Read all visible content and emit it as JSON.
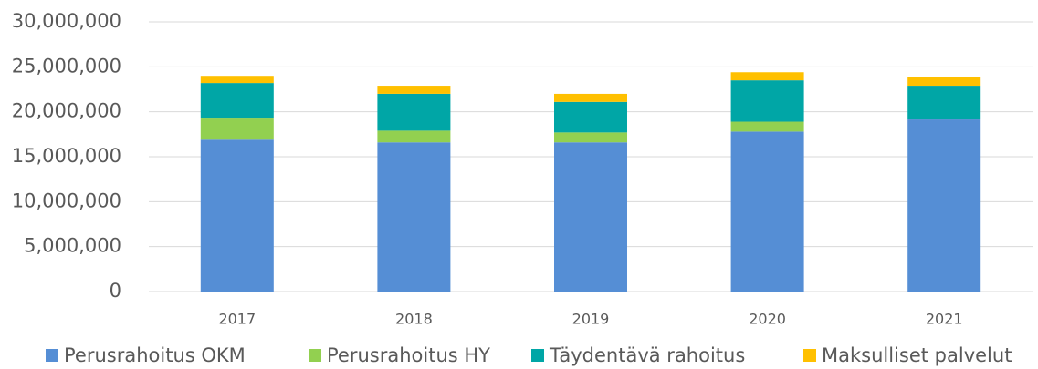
{
  "chart_data": {
    "type": "stacked_bar",
    "categories": [
      "2017",
      "2018",
      "2019",
      "2020",
      "2021"
    ],
    "series": [
      {
        "name": "Perusrahoitus OKM",
        "color": "#558ed5",
        "values": [
          16900000,
          16600000,
          16600000,
          17800000,
          19150000
        ]
      },
      {
        "name": "Perusrahoitus HY",
        "color": "#92d050",
        "values": [
          2350000,
          1300000,
          1100000,
          1100000,
          0
        ]
      },
      {
        "name": "Täydentävä rahoitus",
        "color": "#00a6a6",
        "values": [
          3950000,
          4100000,
          3400000,
          4600000,
          3750000
        ]
      },
      {
        "name": "Maksulliset palvelut",
        "color": "#ffc000",
        "values": [
          800000,
          900000,
          900000,
          900000,
          1000000
        ]
      }
    ],
    "ylim": [
      0,
      30000000
    ],
    "yticks": [
      0,
      {
        "value": 5000000,
        "label": "5,000,000"
      },
      {
        "value": 10000000,
        "label": "10,000,000"
      },
      {
        "value": 15000000,
        "label": "15,000,000"
      },
      {
        "value": 20000000,
        "label": "20,000,000"
      },
      {
        "value": 25000000,
        "label": "25,000,000"
      },
      {
        "value": 30000000,
        "label": "30,000,000"
      }
    ],
    "grid": true,
    "legend": "bottom"
  }
}
